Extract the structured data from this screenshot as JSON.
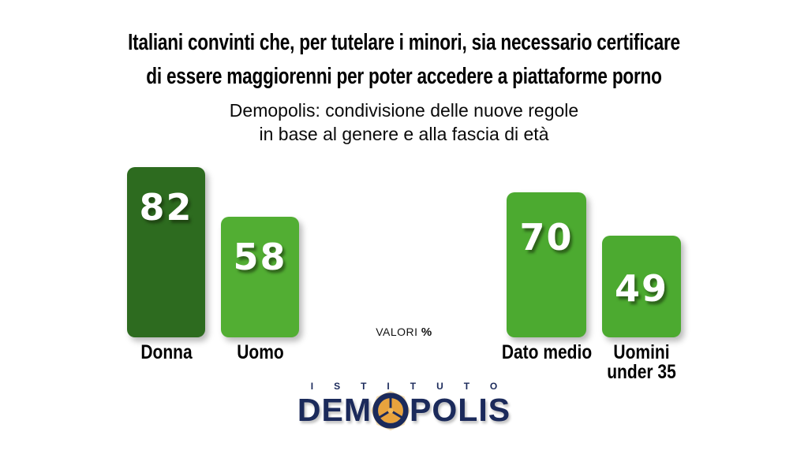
{
  "title": {
    "line1": "Italiani convinti che, per tutelare i minori, sia necessario certificare",
    "line2": "di essere maggiorenni per poter accedere a piattaforme porno"
  },
  "subtitle": {
    "line1": "Demopolis: condivisione delle nuove regole",
    "line2": "in base al genere e alla fascia di età"
  },
  "note": {
    "label": "VALORI",
    "pct": "%"
  },
  "logo": {
    "top_word": "ISTITUTO",
    "word_start": "DEM",
    "word_end": "POLIS",
    "navy": "#1b2a5b",
    "orange": "#e8a33d"
  },
  "chart_data": {
    "type": "bar",
    "title": "Italiani convinti che, per tutelare i minori, sia necessario certificare di essere maggiorenni per poter accedere a piattaforme porno",
    "subtitle": "Demopolis: condivisione delle nuove regole in base al genere e alla fascia di età",
    "categories": [
      "Donna",
      "Uomo",
      "Dato medio",
      "Uomini\nunder 35"
    ],
    "values": [
      82,
      58,
      70,
      49
    ],
    "bar_colors": [
      "#2d6b1f",
      "#52ae33",
      "#4caa30",
      "#4caa30"
    ],
    "unit": "VALORI %",
    "ylim": [
      0,
      100
    ],
    "grid": false,
    "legend": false,
    "groups": [
      {
        "name": "genere",
        "categories": [
          "Donna",
          "Uomo"
        ],
        "values": [
          82,
          58
        ]
      },
      {
        "name": "fascia di età",
        "categories": [
          "Dato medio",
          "Uomini under 35"
        ],
        "values": [
          70,
          49
        ]
      }
    ]
  }
}
